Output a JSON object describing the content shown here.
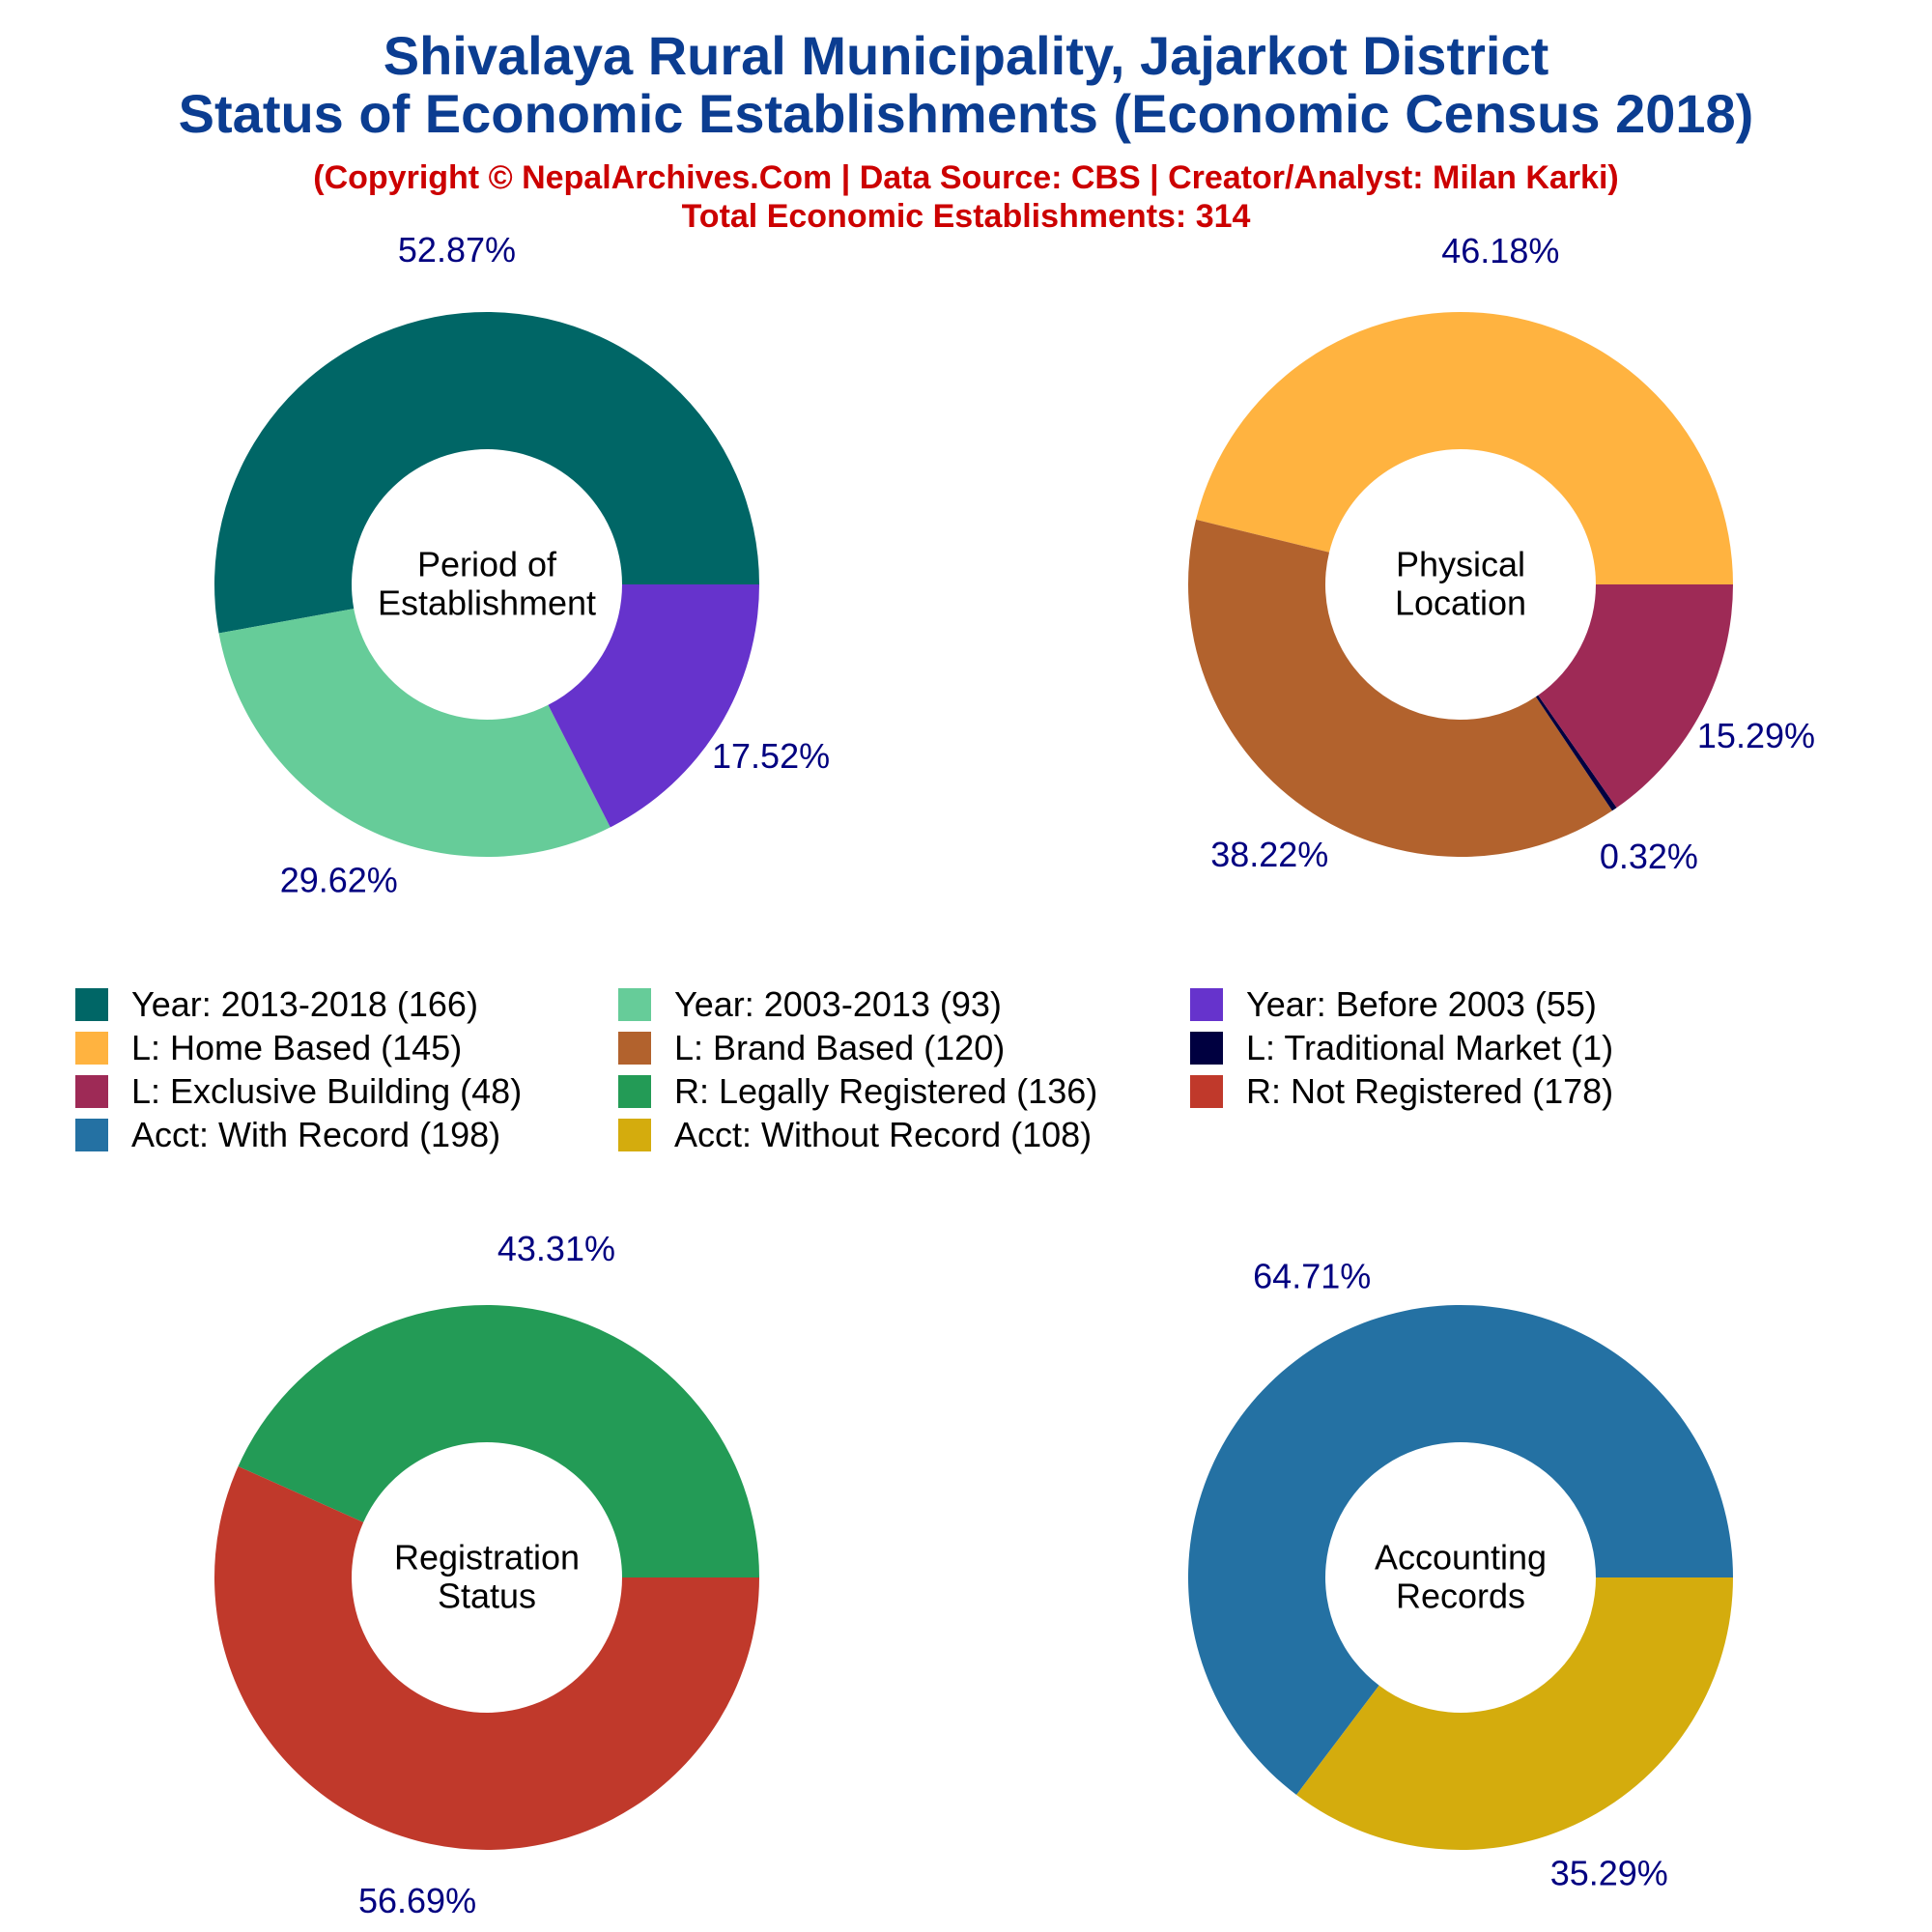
{
  "header": {
    "title_line1": "Shivalaya Rural Municipality, Jajarkot District",
    "title_line2": "Status of Economic Establishments (Economic Census 2018)",
    "credit": "(Copyright © NepalArchives.Com | Data Source: CBS | Creator/Analyst: Milan Karki)",
    "total": "Total Economic Establishments: 314"
  },
  "chart_data": [
    {
      "type": "pie",
      "center_label": [
        "Period of",
        "Establishment"
      ],
      "slices": [
        {
          "label": "Year: 2013-2018",
          "value": 166,
          "pct_label": "52.87%",
          "color": "#006666"
        },
        {
          "label": "Year: 2003-2013",
          "value": 93,
          "pct_label": "29.62%",
          "color": "#66cc99"
        },
        {
          "label": "Year: Before 2003",
          "value": 55,
          "pct_label": "17.52%",
          "color": "#6633cc"
        }
      ]
    },
    {
      "type": "pie",
      "center_label": [
        "Physical",
        "Location"
      ],
      "slices": [
        {
          "label": "L: Home Based",
          "value": 145,
          "pct_label": "46.18%",
          "color": "#ffb340"
        },
        {
          "label": "L: Brand Based",
          "value": 120,
          "pct_label": "38.22%",
          "color": "#b2622d"
        },
        {
          "label": "L: Traditional Market",
          "value": 1,
          "pct_label": "0.32%",
          "color": "#000040"
        },
        {
          "label": "L: Exclusive Building",
          "value": 48,
          "pct_label": "15.29%",
          "color": "#9e2a56"
        }
      ]
    },
    {
      "type": "pie",
      "center_label": [
        "Registration",
        "Status"
      ],
      "slices": [
        {
          "label": "R: Legally Registered",
          "value": 136,
          "pct_label": "43.31%",
          "color": "#239b56"
        },
        {
          "label": "R: Not Registered",
          "value": 178,
          "pct_label": "56.69%",
          "color": "#c0392b"
        }
      ]
    },
    {
      "type": "pie",
      "center_label": [
        "Accounting",
        "Records"
      ],
      "slices": [
        {
          "label": "Acct: With Record",
          "value": 198,
          "pct_label": "64.71%",
          "color": "#2471a3"
        },
        {
          "label": "Acct: Without Record",
          "value": 108,
          "pct_label": "35.29%",
          "color": "#d4ac0d"
        }
      ]
    }
  ],
  "legend": [
    {
      "text": "Year: 2013-2018 (166)",
      "color": "#006666"
    },
    {
      "text": "Year: 2003-2013 (93)",
      "color": "#66cc99"
    },
    {
      "text": "Year: Before 2003 (55)",
      "color": "#6633cc"
    },
    {
      "text": "L: Home Based (145)",
      "color": "#ffb340"
    },
    {
      "text": "L: Brand Based (120)",
      "color": "#b2622d"
    },
    {
      "text": "L: Traditional Market (1)",
      "color": "#000040"
    },
    {
      "text": "L: Exclusive Building (48)",
      "color": "#9e2a56"
    },
    {
      "text": "R: Legally Registered (136)",
      "color": "#239b56"
    },
    {
      "text": "R: Not Registered (178)",
      "color": "#c0392b"
    },
    {
      "text": "Acct: With Record (198)",
      "color": "#2471a3"
    },
    {
      "text": "Acct: Without Record (108)",
      "color": "#d4ac0d"
    }
  ]
}
